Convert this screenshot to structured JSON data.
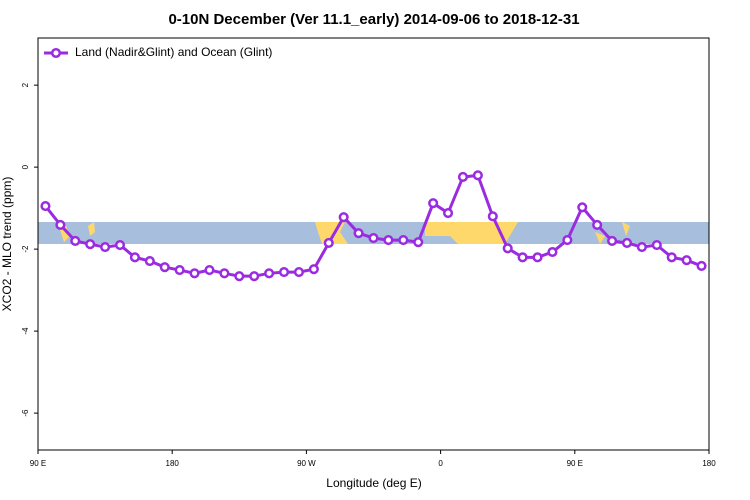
{
  "chart_data": {
    "type": "line",
    "title": "0-10N December (Ver 11.1_early)   2014-09-06 to 2018-12-31",
    "xlabel": "Longitude (deg E)",
    "ylabel": "XCO2 - MLO trend (ppm)",
    "x": [
      95,
      105,
      115,
      125,
      135,
      145,
      155,
      165,
      175,
      185,
      195,
      205,
      215,
      225,
      235,
      245,
      255,
      265,
      275,
      285,
      295,
      305,
      315,
      325,
      335,
      345,
      355,
      365,
      375,
      385,
      395,
      405,
      415,
      425,
      435,
      445,
      455,
      465,
      475,
      485,
      495,
      505,
      515,
      525,
      535
    ],
    "series": [
      {
        "name": "Land (Nadir&Glint) and Ocean (Glint)",
        "color": "#9a2be0",
        "values": [
          -0.95,
          -1.41,
          -1.8,
          -1.88,
          -1.95,
          -1.9,
          -2.2,
          -2.29,
          -2.44,
          -2.51,
          -2.59,
          -2.51,
          -2.59,
          -2.66,
          -2.66,
          -2.59,
          -2.56,
          -2.56,
          -2.49,
          -1.85,
          -1.22,
          -1.61,
          -1.73,
          -1.78,
          -1.78,
          -1.83,
          -0.88,
          -1.12,
          -0.24,
          -0.2,
          -1.2,
          -1.98,
          -2.2,
          -2.2,
          -2.07,
          -1.78,
          -0.98,
          -1.41,
          -1.8,
          -1.85,
          -1.95,
          -1.9,
          -2.2,
          -2.27,
          -2.41
        ]
      }
    ],
    "xlim": [
      90,
      540
    ],
    "xticks": [
      {
        "value": 90,
        "label": "90 E"
      },
      180,
      {
        "value": 270,
        "label": "90 W"
      },
      {
        "value": 360,
        "label": "0"
      },
      {
        "value": 450,
        "label": "90 E"
      },
      {
        "value": 540,
        "label": "180"
      }
    ],
    "ylim": [
      -6.9,
      3.15
    ],
    "yticks": [
      -6,
      -4,
      -2,
      0,
      2
    ],
    "legend": "top-left"
  }
}
